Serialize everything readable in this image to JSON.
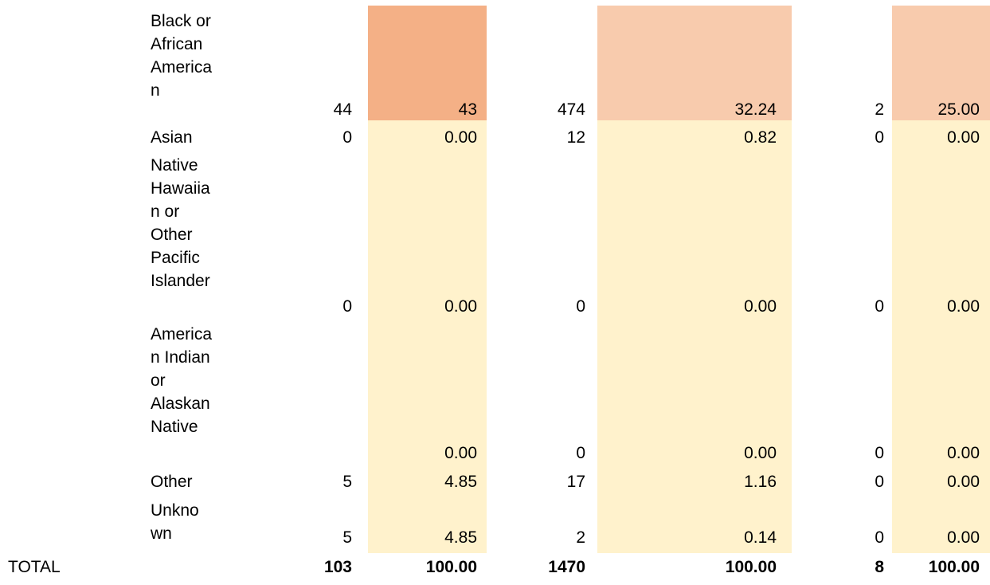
{
  "colors": {
    "highlight_strong": "#f4b086",
    "highlight_light": "#f8cbad",
    "highlight_pale": "#fff2cc"
  },
  "rows": [
    {
      "label": "Black or African American",
      "lines": [
        "Black or",
        "African",
        "America",
        "n"
      ],
      "c1": "44",
      "c2": "43",
      "c3": "474",
      "c4": "32.24",
      "c5": "2",
      "c6": "25.00"
    },
    {
      "label": "Asian",
      "lines": [
        "Asian"
      ],
      "c1": "0",
      "c2": "0.00",
      "c3": "12",
      "c4": "0.82",
      "c5": "0",
      "c6": "0.00"
    },
    {
      "label": "Native Hawaiian or Other Pacific Islander",
      "lines": [
        "Native",
        "Hawaiia",
        "n or",
        "Other",
        "Pacific",
        "Islander"
      ],
      "c1": "0",
      "c2": "0.00",
      "c3": "0",
      "c4": "0.00",
      "c5": "0",
      "c6": "0.00"
    },
    {
      "label": "American Indian or Alaskan Native",
      "lines": [
        "America",
        "n Indian",
        "or",
        "Alaskan",
        "Native"
      ],
      "c1": "",
      "c2": "0.00",
      "c3": "0",
      "c4": "0.00",
      "c5": "0",
      "c6": "0.00"
    },
    {
      "label": "Other",
      "lines": [
        "Other"
      ],
      "c1": "5",
      "c2": "4.85",
      "c3": "17",
      "c4": "1.16",
      "c5": "0",
      "c6": "0.00"
    },
    {
      "label": "Unknown",
      "lines": [
        "Unkno",
        "wn"
      ],
      "c1": "5",
      "c2": "4.85",
      "c3": "2",
      "c4": "0.14",
      "c5": "0",
      "c6": "0.00"
    }
  ],
  "total": {
    "label": "TOTAL",
    "c1": "103",
    "c2": "100.00",
    "c3": "1470",
    "c4": "100.00",
    "c5": "8",
    "c6": "100.00"
  }
}
